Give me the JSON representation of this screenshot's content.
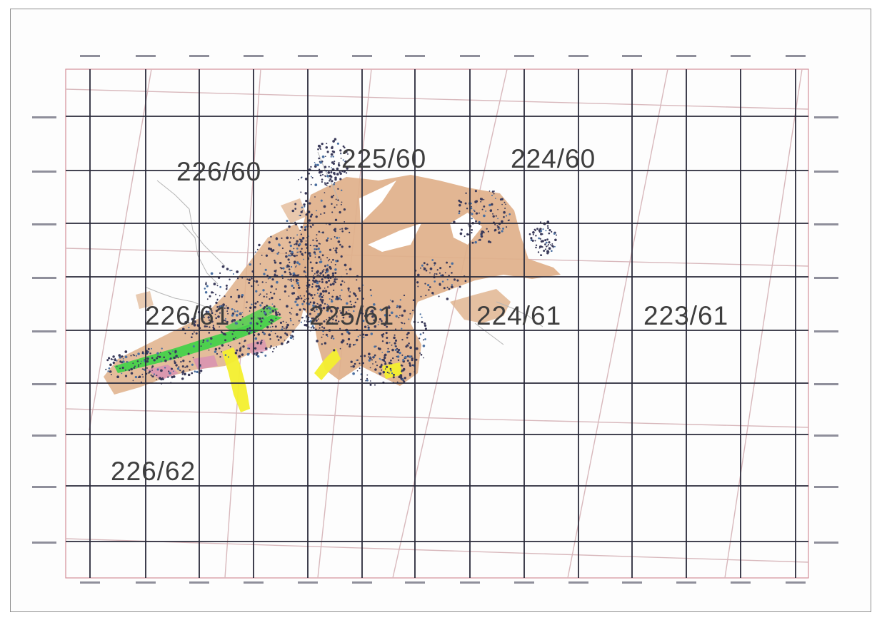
{
  "map": {
    "scene_labels": [
      {
        "id": "226-60",
        "text": "226/60"
      },
      {
        "id": "225-60",
        "text": "225/60"
      },
      {
        "id": "224-60",
        "text": "224/60"
      },
      {
        "id": "226-61",
        "text": "226/61"
      },
      {
        "id": "225-61",
        "text": "225/61"
      },
      {
        "id": "224-61",
        "text": "224/61"
      },
      {
        "id": "223-61",
        "text": "223/61"
      },
      {
        "id": "226-62",
        "text": "226/62"
      }
    ],
    "colors": {
      "grid": "#2a2a3a",
      "scene_outline": "#d8b8bc",
      "frame_border": "#d38f99",
      "land_cover_tan": "#dfb08a",
      "vegetation_green": "#44d14a",
      "highlight_yellow": "#f3ef2e",
      "pink_patches": "#d992b3",
      "dark_points": "#3a3a5a",
      "drainage": "#b6b6b6"
    }
  }
}
